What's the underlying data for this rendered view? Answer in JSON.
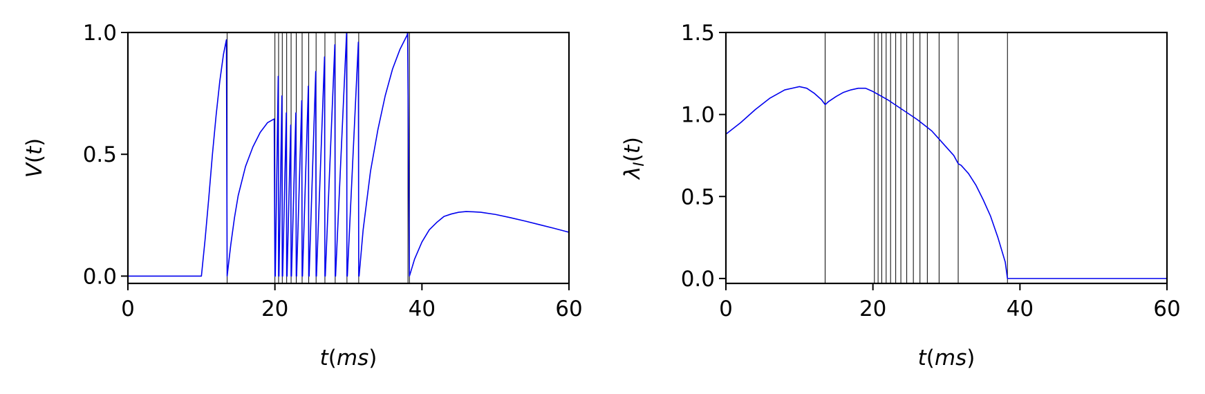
{
  "chart_data": [
    {
      "type": "line",
      "title": "",
      "xlabel_main": "t",
      "xlabel_unit": "ms",
      "ylabel_main": "V",
      "ylabel_arg": "t",
      "xlim": [
        0,
        60
      ],
      "ylim": [
        -0.03,
        1.0
      ],
      "xticks": [
        0,
        20,
        40,
        60
      ],
      "xtick_labels": [
        "0",
        "20",
        "40",
        "60"
      ],
      "yticks": [
        0.0,
        0.5,
        1.0
      ],
      "ytick_labels": [
        "0.0",
        "0.5",
        "1.0"
      ],
      "series_color": "#0000ee",
      "spike_color": "#000000",
      "spike_times": [
        13.5,
        20.0,
        20.5,
        21.0,
        21.6,
        22.2,
        22.9,
        23.7,
        24.6,
        25.6,
        26.8,
        28.2,
        29.8,
        31.4,
        38.1,
        38.3
      ],
      "series": [
        {
          "name": "V(t)",
          "x": [
            0,
            10,
            10.5,
            11,
            11.5,
            12,
            12.5,
            13,
            13.4,
            13.5,
            14,
            14.5,
            15,
            16,
            17,
            18,
            19,
            19.9,
            20.0,
            20.05,
            20.45,
            20.5,
            20.55,
            20.95,
            21.0,
            21.05,
            21.55,
            21.6,
            21.65,
            22.15,
            22.2,
            22.25,
            22.85,
            22.9,
            22.95,
            23.65,
            23.7,
            23.75,
            24.55,
            24.6,
            24.65,
            25.55,
            25.6,
            25.65,
            26.75,
            26.8,
            26.85,
            28.15,
            28.2,
            28.25,
            29.75,
            29.8,
            29.85,
            31.35,
            31.4,
            31.45,
            32,
            33,
            34,
            35,
            36,
            37,
            38.0,
            38.05,
            38.3,
            39,
            40,
            41,
            42,
            43,
            44,
            45,
            46,
            47,
            48,
            50,
            52,
            54,
            56,
            58,
            60
          ],
          "y": [
            0.0,
            0.0,
            0.15,
            0.32,
            0.5,
            0.66,
            0.8,
            0.91,
            0.97,
            0.0,
            0.13,
            0.24,
            0.33,
            0.45,
            0.53,
            0.59,
            0.63,
            0.645,
            0.0,
            0.0,
            0.82,
            0.0,
            0.0,
            0.74,
            0.0,
            0.0,
            0.67,
            0.0,
            0.0,
            0.62,
            0.0,
            0.0,
            0.67,
            0.0,
            0.0,
            0.72,
            0.0,
            0.0,
            0.78,
            0.0,
            0.0,
            0.84,
            0.0,
            0.0,
            0.9,
            0.0,
            0.0,
            0.95,
            0.0,
            0.0,
            1.0,
            0.0,
            0.0,
            0.96,
            0.0,
            0.0,
            0.19,
            0.43,
            0.6,
            0.74,
            0.85,
            0.93,
            0.99,
            1.0,
            0.0,
            0.07,
            0.14,
            0.19,
            0.22,
            0.245,
            0.255,
            0.262,
            0.265,
            0.264,
            0.262,
            0.253,
            0.24,
            0.226,
            0.211,
            0.196,
            0.18
          ]
        }
      ]
    },
    {
      "type": "line",
      "title": "",
      "xlabel_main": "t",
      "xlabel_unit": "ms",
      "ylabel_main": "λ",
      "ylabel_sub": "I",
      "ylabel_arg": "t",
      "xlim": [
        0,
        60
      ],
      "ylim": [
        -0.03,
        1.5
      ],
      "xticks": [
        0,
        20,
        40,
        60
      ],
      "xtick_labels": [
        "0",
        "20",
        "40",
        "60"
      ],
      "yticks": [
        0.0,
        0.5,
        1.0,
        1.5
      ],
      "ytick_labels": [
        "0.0",
        "0.5",
        "1.0",
        "1.5"
      ],
      "series_color": "#0000ee",
      "spike_color": "#000000",
      "spike_times": [
        13.5,
        20.2,
        20.7,
        21.2,
        21.8,
        22.4,
        23.1,
        23.8,
        24.6,
        25.5,
        26.4,
        27.4,
        29.0,
        31.6,
        38.3
      ],
      "series": [
        {
          "name": "λI(t)",
          "x": [
            0,
            2,
            4,
            6,
            8,
            10,
            11,
            12,
            13,
            13.5,
            14,
            15,
            16,
            17,
            18,
            19,
            20,
            21,
            22,
            23,
            24,
            25,
            26,
            27,
            28,
            29,
            30,
            31,
            31.6,
            32,
            33,
            34,
            35,
            36,
            37,
            38,
            38.3,
            40,
            45,
            50,
            55,
            60
          ],
          "y": [
            0.88,
            0.95,
            1.03,
            1.1,
            1.15,
            1.17,
            1.16,
            1.13,
            1.09,
            1.06,
            1.08,
            1.11,
            1.135,
            1.15,
            1.16,
            1.16,
            1.14,
            1.115,
            1.09,
            1.06,
            1.03,
            1.0,
            0.97,
            0.935,
            0.9,
            0.85,
            0.8,
            0.75,
            0.7,
            0.69,
            0.64,
            0.57,
            0.48,
            0.38,
            0.25,
            0.1,
            0.0,
            0.0,
            0.0,
            0.0,
            0.0,
            0.0
          ]
        }
      ]
    }
  ]
}
